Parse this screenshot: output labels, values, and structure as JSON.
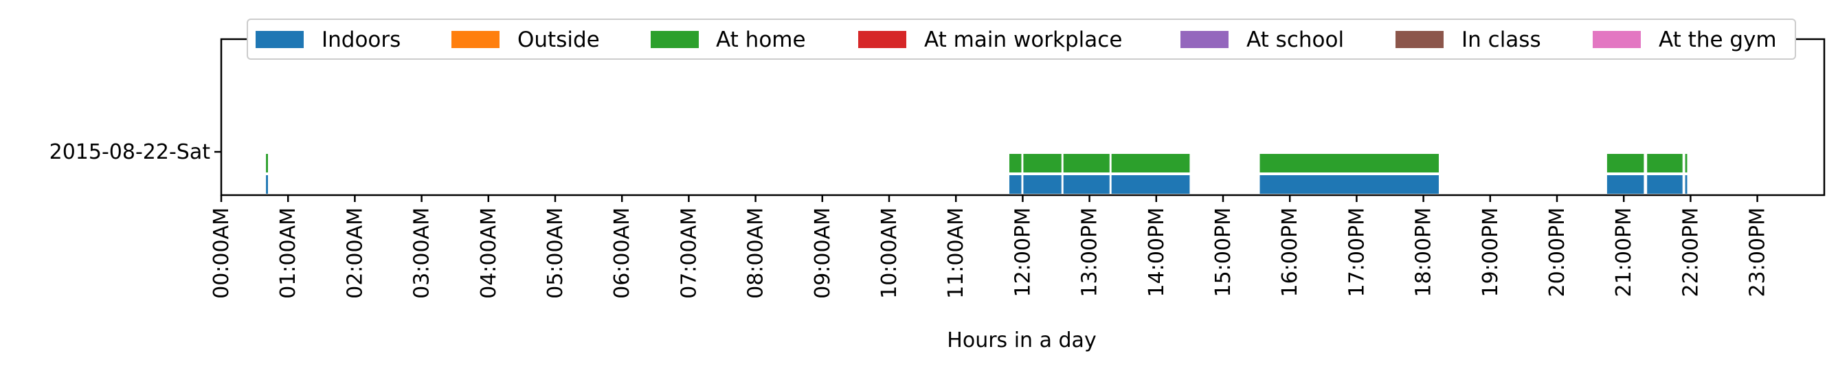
{
  "chart_data": {
    "type": "bar",
    "orientation": "horizontal-timeline",
    "xlabel": "Hours in a day",
    "ylabel": "",
    "xlim": [
      0,
      24
    ],
    "grid": false,
    "legend_placement": "top",
    "y_categories": [
      "2015-08-22-Sat"
    ],
    "x_ticks": [
      {
        "value": 0,
        "label": "00:00AM"
      },
      {
        "value": 1,
        "label": "01:00AM"
      },
      {
        "value": 2,
        "label": "02:00AM"
      },
      {
        "value": 3,
        "label": "03:00AM"
      },
      {
        "value": 4,
        "label": "04:00AM"
      },
      {
        "value": 5,
        "label": "05:00AM"
      },
      {
        "value": 6,
        "label": "06:00AM"
      },
      {
        "value": 7,
        "label": "07:00AM"
      },
      {
        "value": 8,
        "label": "08:00AM"
      },
      {
        "value": 9,
        "label": "09:00AM"
      },
      {
        "value": 10,
        "label": "10:00AM"
      },
      {
        "value": 11,
        "label": "11:00AM"
      },
      {
        "value": 12,
        "label": "12:00PM"
      },
      {
        "value": 13,
        "label": "13:00PM"
      },
      {
        "value": 14,
        "label": "14:00PM"
      },
      {
        "value": 15,
        "label": "15:00PM"
      },
      {
        "value": 16,
        "label": "16:00PM"
      },
      {
        "value": 17,
        "label": "17:00PM"
      },
      {
        "value": 18,
        "label": "18:00PM"
      },
      {
        "value": 19,
        "label": "19:00PM"
      },
      {
        "value": 20,
        "label": "20:00PM"
      },
      {
        "value": 21,
        "label": "21:00PM"
      },
      {
        "value": 22,
        "label": "22:00PM"
      },
      {
        "value": 23,
        "label": "23:00PM"
      }
    ],
    "series": [
      {
        "name": "Indoors",
        "color": "#1f77b4",
        "row": 0,
        "intervals": [
          [
            0.67,
            0.7
          ],
          [
            11.8,
            11.98
          ],
          [
            12.01,
            12.58
          ],
          [
            12.61,
            13.3
          ],
          [
            13.33,
            14.5
          ],
          [
            15.55,
            18.23
          ],
          [
            20.75,
            21.3
          ],
          [
            21.35,
            21.88
          ],
          [
            21.92,
            21.95
          ]
        ]
      },
      {
        "name": "Outside",
        "color": "#ff7f0e",
        "row": 0,
        "intervals": []
      },
      {
        "name": "At home",
        "color": "#2ca02c",
        "row": 1,
        "intervals": [
          [
            0.67,
            0.7
          ],
          [
            11.8,
            11.98
          ],
          [
            12.01,
            12.58
          ],
          [
            12.61,
            13.3
          ],
          [
            13.33,
            14.5
          ],
          [
            15.55,
            18.23
          ],
          [
            20.75,
            21.3
          ],
          [
            21.35,
            21.88
          ],
          [
            21.92,
            21.95
          ]
        ]
      },
      {
        "name": "At main workplace",
        "color": "#d62728",
        "row": 0,
        "intervals": []
      },
      {
        "name": "At school",
        "color": "#9467bd",
        "row": 0,
        "intervals": []
      },
      {
        "name": "In class",
        "color": "#8c564b",
        "row": 0,
        "intervals": []
      },
      {
        "name": "At the gym",
        "color": "#e377c2",
        "row": 0,
        "intervals": []
      }
    ]
  }
}
